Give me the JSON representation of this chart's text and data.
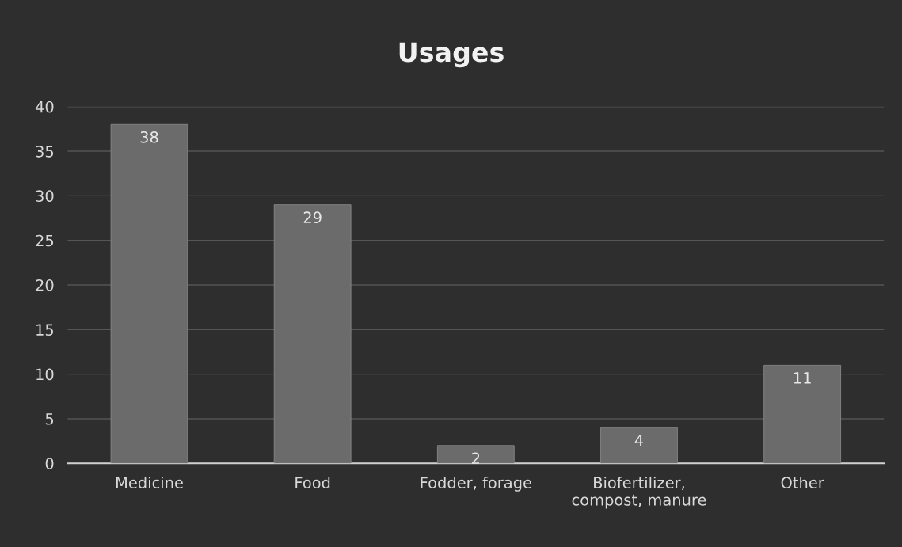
{
  "chart_data": {
    "type": "bar",
    "title": "Usages",
    "categories": [
      "Medicine",
      "Food",
      "Fodder, forage",
      "Biofertilizer,\ncompost, manure",
      "Other"
    ],
    "values": [
      38,
      29,
      2,
      4,
      11
    ],
    "color": "#6b6b6b",
    "ylim": [
      0,
      40
    ],
    "yticks": [
      0,
      5,
      10,
      15,
      20,
      25,
      30,
      35,
      40
    ],
    "grid": "y",
    "data_labels": true
  }
}
